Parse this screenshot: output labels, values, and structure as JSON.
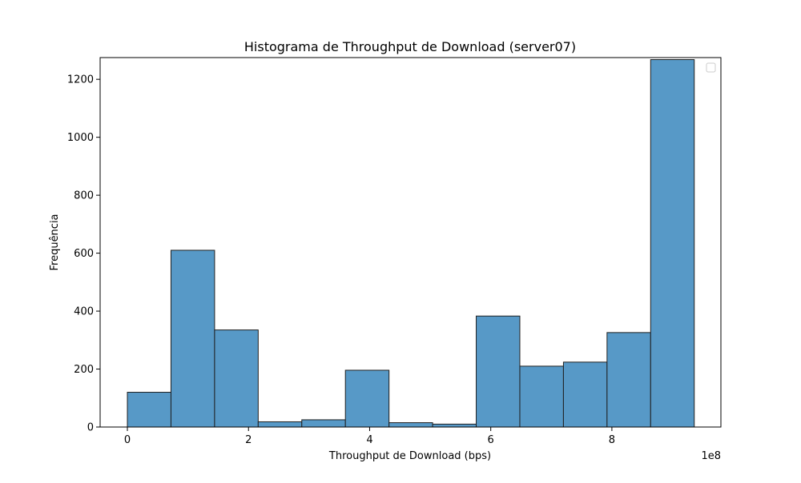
{
  "chart_data": {
    "type": "bar",
    "title": "Histograma de Throughput de Download (server07)",
    "xlabel": "Throughput de Download (bps)",
    "ylabel": "Frequência",
    "x_offset_label": "1e8",
    "x_scale": 100000000,
    "bin_edges": [
      0,
      72000000,
      144000000,
      216000000,
      288000000,
      360000000,
      432000000,
      504000000,
      576000000,
      648000000,
      720000000,
      792000000,
      864000000,
      936000000
    ],
    "values": [
      120,
      610,
      335,
      18,
      25,
      196,
      15,
      10,
      383,
      210,
      224,
      326,
      1268
    ],
    "xlim": [
      -45000000,
      980000000
    ],
    "ylim": [
      0,
      1275
    ],
    "x_ticks": [
      0,
      200000000,
      400000000,
      600000000,
      800000000
    ],
    "x_tick_labels": [
      "0",
      "2",
      "4",
      "6",
      "8"
    ],
    "y_ticks": [
      0,
      200,
      400,
      600,
      800,
      1000,
      1200
    ],
    "y_tick_labels": [
      "0",
      "200",
      "400",
      "600",
      "800",
      "1000",
      "1200"
    ],
    "grid": false,
    "legend": "top-right",
    "bar_color": "#5799c7",
    "edge_color": "#1f1f1f"
  }
}
